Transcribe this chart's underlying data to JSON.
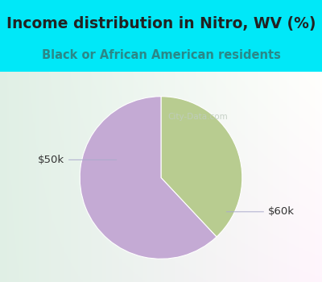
{
  "title": "Income distribution in Nitro, WV (%)",
  "subtitle": "Black or African American residents",
  "slices": [
    0.38,
    0.62
  ],
  "labels": [
    "$50k",
    "$60k"
  ],
  "colors": [
    "#b8cc90",
    "#c4aad4"
  ],
  "start_angle": 90,
  "counterclock": false,
  "background_color": "#00e8f8",
  "chart_bg_top": "#f0f8f0",
  "chart_bg_bottom": "#e0f0e8",
  "title_color": "#222222",
  "subtitle_color": "#2a8888",
  "title_fontsize": 13.5,
  "subtitle_fontsize": 10.5,
  "label_fontsize": 9.5,
  "label_color": "#333333",
  "watermark": "City-Data.com",
  "watermark_color": "#c0ccc0",
  "leader_color": "#aaaacc"
}
